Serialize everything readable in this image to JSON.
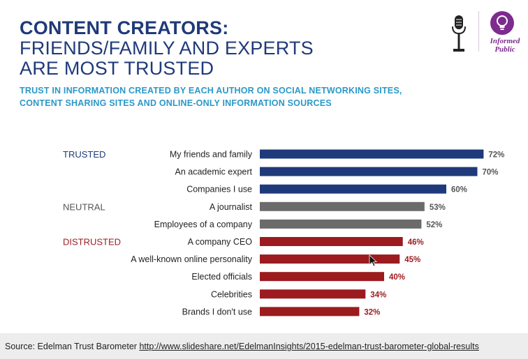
{
  "title": {
    "line1": "CONTENT CREATORS:",
    "line2": "FRIENDS/FAMILY AND EXPERTS",
    "line3": "ARE MOST TRUSTED"
  },
  "subtitle": {
    "line1": "TRUST IN INFORMATION CREATED BY EACH AUTHOR ON SOCIAL NETWORKING SITES,",
    "line2": "CONTENT SHARING SITES AND ONLINE-ONLY INFORMATION SOURCES"
  },
  "logo": {
    "line1": "Informed",
    "line2": "Public",
    "icons": [
      "microphone-icon",
      "lightbulb-icon"
    ]
  },
  "colors": {
    "trusted": "#1f3a7b",
    "neutral": "#6b6b6b",
    "distrusted": "#9b1b1f",
    "title": "#1f3a78",
    "subtitle": "#2a98c8"
  },
  "chart_data": {
    "type": "bar",
    "orientation": "horizontal",
    "value_suffix": "%",
    "xlim": [
      0,
      75
    ],
    "grid": false,
    "groups": [
      {
        "label": "TRUSTED",
        "status": "trusted",
        "color": "#1f3a7b",
        "categories": [
          "My friends and family",
          "An academic expert",
          "Companies I use"
        ]
      },
      {
        "label": "NEUTRAL",
        "status": "neutral",
        "color": "#6b6b6b",
        "categories": [
          "A journalist",
          "Employees of a company"
        ]
      },
      {
        "label": "DISTRUSTED",
        "status": "distrusted",
        "color": "#9b1b1f",
        "categories": [
          "A company CEO",
          "A well-known online personality",
          "Elected officials",
          "Celebrities",
          "Brands I don't use"
        ]
      }
    ],
    "categories": [
      "My friends and family",
      "An academic expert",
      "Companies I use",
      "A journalist",
      "Employees of a company",
      "A company CEO",
      "A well-known online personality",
      "Elected officials",
      "Celebrities",
      "Brands I don't use"
    ],
    "values": [
      72,
      70,
      60,
      53,
      52,
      46,
      45,
      40,
      34,
      32
    ],
    "status": [
      "trusted",
      "trusted",
      "trusted",
      "neutral",
      "neutral",
      "distrusted",
      "distrusted",
      "distrusted",
      "distrusted",
      "distrusted"
    ],
    "labels": [
      "72%",
      "70%",
      "60%",
      "53%",
      "52%",
      "46%",
      "45%",
      "40%",
      "34%",
      "32%"
    ]
  },
  "source": {
    "prefix": "Source: Edelman Trust Barometer",
    "link": "http://www.slideshare.net/EdelmanInsights/2015-edelman-trust-barometer-global-results"
  }
}
